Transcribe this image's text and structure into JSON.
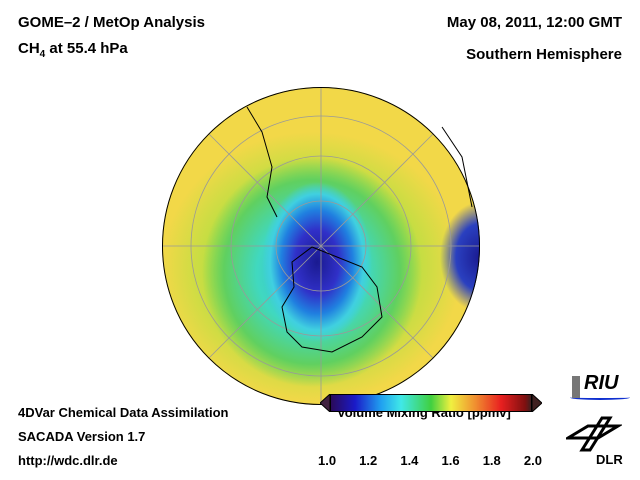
{
  "header": {
    "title": "GOME–2 / MetOp Analysis",
    "species": "CH",
    "species_sub": "4",
    "level": " at 55.4 hPa",
    "datetime": "May 08, 2011, 12:00 GMT",
    "region": "Southern Hemisphere"
  },
  "footer": {
    "line1": "4DVar Chemical Data Assimilation",
    "line2": "SACADA Version 1.7",
    "line3": "http://wdc.dlr.de"
  },
  "legend": {
    "title": "Volume Mixing Ratio [ppmv]",
    "ticks": [
      "1.0",
      "1.2",
      "1.4",
      "1.6",
      "1.8",
      "2.0"
    ]
  },
  "logos": {
    "riu": "RIU",
    "dlr": "DLR"
  }
}
